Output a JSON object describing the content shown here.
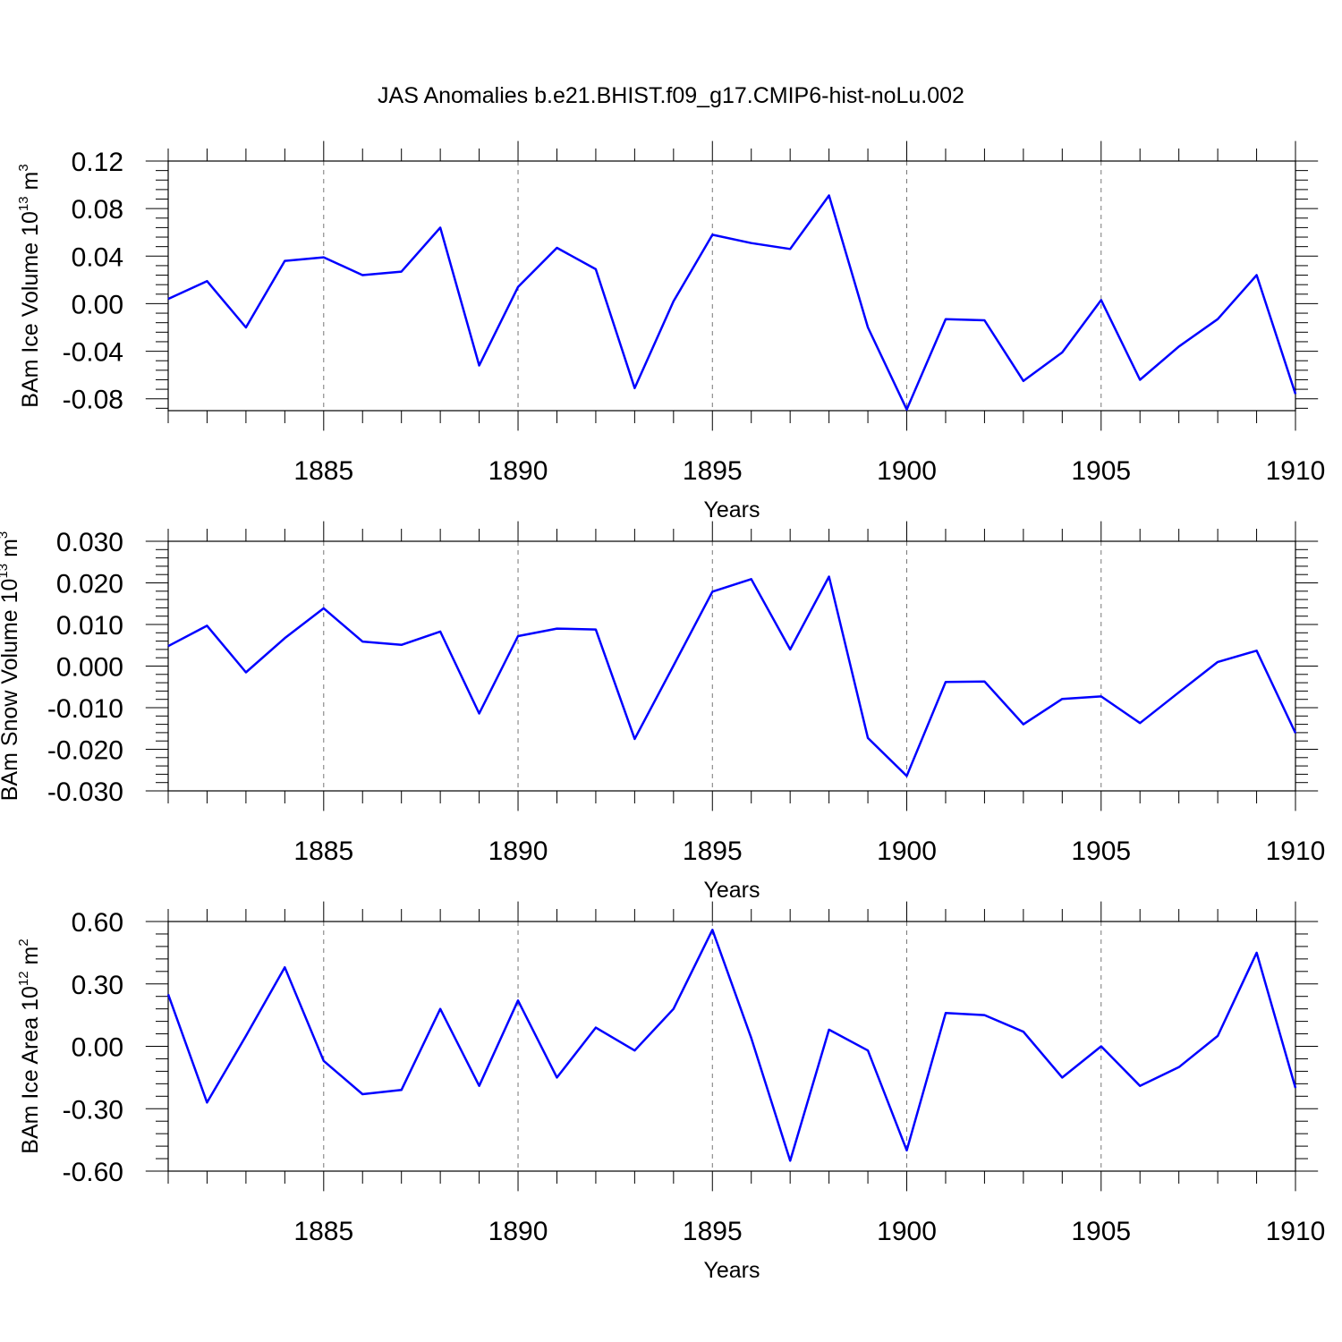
{
  "title": "JAS Anomalies b.e21.BHIST.f09_g17.CMIP6-hist-noLu.002",
  "colors": {
    "series": "#0000ff",
    "grid": "#777777"
  },
  "chart_data": [
    {
      "type": "line",
      "ylabel": {
        "text": "BAm Ice Volume 10",
        "sup": "13",
        "unit": " m",
        "unit_sup": "3"
      },
      "xlabel": "Years",
      "xlim": [
        1881,
        1910
      ],
      "ylim": [
        -0.09,
        0.12
      ],
      "yticks": [
        "0.12",
        "0.08",
        "0.04",
        "0.00",
        "-0.04",
        "-0.08"
      ],
      "ytick_values": [
        0.12,
        0.08,
        0.04,
        0.0,
        -0.04,
        -0.08
      ],
      "xticks": [
        "1885",
        "1890",
        "1895",
        "1900",
        "1905",
        "1910"
      ],
      "xtick_values": [
        1885,
        1890,
        1895,
        1900,
        1905,
        1910
      ],
      "grid": "vertical-dashed",
      "x": [
        1881,
        1882,
        1883,
        1884,
        1885,
        1886,
        1887,
        1888,
        1889,
        1890,
        1891,
        1892,
        1893,
        1894,
        1895,
        1896,
        1897,
        1898,
        1899,
        1900,
        1901,
        1902,
        1903,
        1904,
        1905,
        1906,
        1907,
        1908,
        1909,
        1910
      ],
      "values": [
        0.004,
        0.019,
        -0.02,
        0.036,
        0.039,
        0.024,
        0.027,
        0.064,
        -0.052,
        0.014,
        0.047,
        0.029,
        -0.071,
        0.002,
        0.058,
        0.051,
        0.046,
        0.091,
        -0.02,
        -0.089,
        -0.013,
        -0.014,
        -0.065,
        -0.041,
        0.003,
        -0.064,
        -0.036,
        -0.013,
        0.024,
        -0.076
      ]
    },
    {
      "type": "line",
      "ylabel": {
        "text": "BAm Snow Volume 10",
        "sup": "13",
        "unit": " m",
        "unit_sup": "3"
      },
      "xlabel": "Years",
      "xlim": [
        1881,
        1910
      ],
      "ylim": [
        -0.03,
        0.03
      ],
      "yticks": [
        "0.030",
        "0.020",
        "0.010",
        "0.000",
        "-0.010",
        "-0.020",
        "-0.030"
      ],
      "ytick_values": [
        0.03,
        0.02,
        0.01,
        0.0,
        -0.01,
        -0.02,
        -0.03
      ],
      "xticks": [
        "1885",
        "1890",
        "1895",
        "1900",
        "1905",
        "1910"
      ],
      "xtick_values": [
        1885,
        1890,
        1895,
        1900,
        1905,
        1910
      ],
      "grid": "vertical-dashed",
      "x": [
        1881,
        1882,
        1883,
        1884,
        1885,
        1886,
        1887,
        1888,
        1889,
        1890,
        1891,
        1892,
        1893,
        1894,
        1895,
        1896,
        1897,
        1898,
        1899,
        1900,
        1901,
        1902,
        1903,
        1904,
        1905,
        1906,
        1907,
        1908,
        1909,
        1910
      ],
      "values": [
        0.0048,
        0.0097,
        -0.0015,
        0.0067,
        0.0139,
        0.0059,
        0.0051,
        0.0083,
        -0.0114,
        0.0072,
        0.009,
        0.0088,
        -0.0175,
        0.0001,
        0.0179,
        0.0209,
        0.004,
        0.0215,
        -0.0173,
        -0.0264,
        -0.0038,
        -0.0037,
        -0.014,
        -0.0079,
        -0.0073,
        -0.0137,
        -0.0063,
        0.001,
        0.0037,
        -0.0161
      ]
    },
    {
      "type": "line",
      "ylabel": {
        "text": "BAm Ice Area 10",
        "sup": "12",
        "unit": " m",
        "unit_sup": "2"
      },
      "xlabel": "Years",
      "xlim": [
        1881,
        1910
      ],
      "ylim": [
        -0.6,
        0.6
      ],
      "yticks": [
        "0.60",
        "0.30",
        "0.00",
        "-0.30",
        "-0.60"
      ],
      "ytick_values": [
        0.6,
        0.3,
        0.0,
        -0.3,
        -0.6
      ],
      "xticks": [
        "1885",
        "1890",
        "1895",
        "1900",
        "1905",
        "1910"
      ],
      "xtick_values": [
        1885,
        1890,
        1895,
        1900,
        1905,
        1910
      ],
      "grid": "vertical-dashed",
      "x": [
        1881,
        1882,
        1883,
        1884,
        1885,
        1886,
        1887,
        1888,
        1889,
        1890,
        1891,
        1892,
        1893,
        1894,
        1895,
        1896,
        1897,
        1898,
        1899,
        1900,
        1901,
        1902,
        1903,
        1904,
        1905,
        1906,
        1907,
        1908,
        1909,
        1910
      ],
      "values": [
        0.25,
        -0.27,
        0.05,
        0.38,
        -0.07,
        -0.23,
        -0.21,
        0.18,
        -0.19,
        0.22,
        -0.15,
        0.09,
        -0.02,
        0.18,
        0.56,
        0.04,
        -0.55,
        0.08,
        -0.02,
        -0.5,
        0.16,
        0.15,
        0.07,
        -0.15,
        0.0,
        -0.19,
        -0.1,
        0.05,
        0.45,
        -0.2
      ]
    }
  ]
}
